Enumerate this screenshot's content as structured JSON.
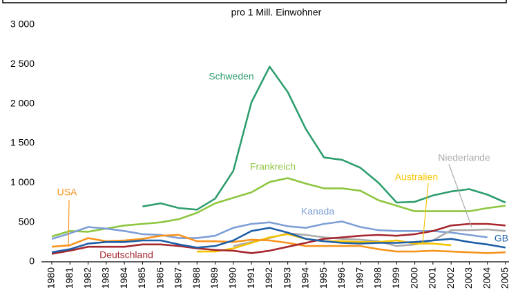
{
  "chart_data": {
    "type": "line",
    "subtitle": "pro 1 Mill. Einwohner",
    "categories": [
      "1980",
      "1981",
      "1982",
      "1983",
      "1984",
      "1985",
      "1986",
      "1987",
      "1988",
      "1989",
      "1990",
      "1991",
      "1992",
      "1993",
      "1994",
      "1995",
      "1996",
      "1997",
      "1998",
      "1999",
      "2000",
      "2001",
      "2002",
      "2003",
      "2004",
      "2005"
    ],
    "ylim": [
      0,
      3000
    ],
    "yticks": [
      0,
      500,
      {
        "value": 1000,
        "label": "1 000"
      },
      {
        "value": 1500,
        "label": "1 500"
      },
      {
        "value": 2000,
        "label": "2 000"
      },
      {
        "value": 2500,
        "label": "2 500"
      },
      {
        "value": 3000,
        "label": "3 000"
      }
    ],
    "grid": false,
    "series": [
      {
        "name": "Schweden",
        "color": "#2e9e6e",
        "values": [
          null,
          null,
          null,
          null,
          null,
          700,
          740,
          680,
          660,
          800,
          1150,
          2020,
          2470,
          2150,
          1680,
          1320,
          1290,
          1190,
          1000,
          750,
          760,
          840,
          890,
          920,
          850,
          750
        ]
      },
      {
        "name": "Frankreich",
        "color": "#8dc63f",
        "values": [
          320,
          390,
          380,
          420,
          460,
          480,
          500,
          540,
          620,
          740,
          810,
          880,
          1010,
          1060,
          990,
          930,
          930,
          900,
          780,
          710,
          640,
          640,
          640,
          640,
          680,
          710
        ]
      },
      {
        "name": "Kanada",
        "color": "#7e9fd6",
        "values": [
          290,
          360,
          440,
          420,
          390,
          350,
          340,
          300,
          300,
          330,
          430,
          480,
          500,
          450,
          430,
          480,
          510,
          440,
          400,
          390,
          390,
          390,
          370,
          340,
          310,
          null
        ]
      },
      {
        "name": "Niederlande",
        "color": "#aaaaaa",
        "values": [
          null,
          null,
          null,
          null,
          null,
          null,
          null,
          null,
          null,
          null,
          200,
          250,
          300,
          360,
          340,
          310,
          290,
          280,
          260,
          200,
          220,
          270,
          400,
          400,
          410,
          390
        ]
      },
      {
        "name": "Australien",
        "color": "#f5c400",
        "values": [
          null,
          null,
          null,
          null,
          null,
          null,
          null,
          null,
          130,
          130,
          170,
          240,
          310,
          350,
          290,
          260,
          260,
          250,
          250,
          270,
          230,
          230,
          210,
          null,
          null,
          null
        ]
      },
      {
        "name": "USA",
        "color": "#f7941d",
        "values": [
          190,
          210,
          300,
          260,
          270,
          290,
          330,
          340,
          260,
          260,
          250,
          280,
          270,
          240,
          200,
          200,
          200,
          200,
          160,
          130,
          130,
          140,
          130,
          120,
          110,
          120
        ]
      },
      {
        "name": "Deutschland",
        "color": "#a6272e",
        "values": [
          100,
          140,
          190,
          190,
          190,
          220,
          220,
          200,
          170,
          150,
          140,
          110,
          140,
          190,
          240,
          290,
          310,
          330,
          340,
          330,
          350,
          390,
          460,
          480,
          480,
          460
        ]
      },
      {
        "name": "GB",
        "color": "#1f5fa8",
        "values": [
          120,
          160,
          230,
          250,
          250,
          270,
          270,
          220,
          180,
          200,
          270,
          390,
          430,
          370,
          290,
          260,
          240,
          230,
          240,
          240,
          250,
          270,
          290,
          250,
          220,
          180
        ]
      }
    ]
  }
}
